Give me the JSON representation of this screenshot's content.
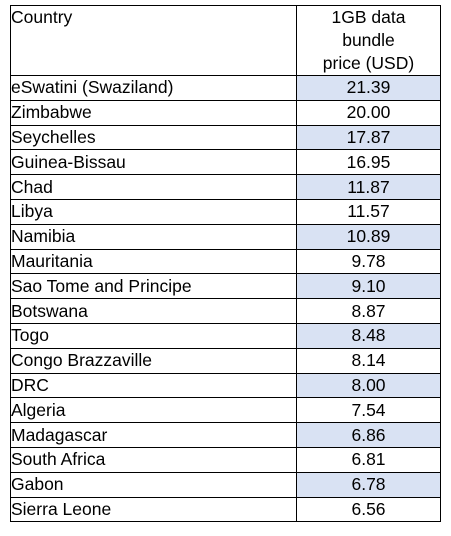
{
  "table": {
    "headers": {
      "country": "Country",
      "price_line1": "1GB data",
      "price_line2": "bundle",
      "price_line3": "price (USD)"
    },
    "shade_color": "#d9e2f3",
    "rows": [
      {
        "country": "eSwatini (Swaziland)",
        "price": "21.39",
        "shaded": true
      },
      {
        "country": "Zimbabwe",
        "price": "20.00",
        "shaded": false
      },
      {
        "country": "Seychelles",
        "price": "17.87",
        "shaded": true
      },
      {
        "country": "Guinea-Bissau",
        "price": "16.95",
        "shaded": false
      },
      {
        "country": "Chad",
        "price": "11.87",
        "shaded": true
      },
      {
        "country": "Libya",
        "price": "11.57",
        "shaded": false
      },
      {
        "country": "Namibia",
        "price": "10.89",
        "shaded": true
      },
      {
        "country": "Mauritania",
        "price": "9.78",
        "shaded": false
      },
      {
        "country": "Sao Tome and Principe",
        "price": "9.10",
        "shaded": true
      },
      {
        "country": "Botswana",
        "price": "8.87",
        "shaded": false
      },
      {
        "country": "Togo",
        "price": "8.48",
        "shaded": true
      },
      {
        "country": "Congo Brazzaville",
        "price": "8.14",
        "shaded": false
      },
      {
        "country": "DRC",
        "price": "8.00",
        "shaded": true
      },
      {
        "country": "Algeria",
        "price": "7.54",
        "shaded": false
      },
      {
        "country": "Madagascar",
        "price": "6.86",
        "shaded": true
      },
      {
        "country": "South Africa",
        "price": "6.81",
        "shaded": false
      },
      {
        "country": "Gabon",
        "price": "6.78",
        "shaded": true
      },
      {
        "country": "Sierra Leone",
        "price": "6.56",
        "shaded": false
      }
    ]
  }
}
